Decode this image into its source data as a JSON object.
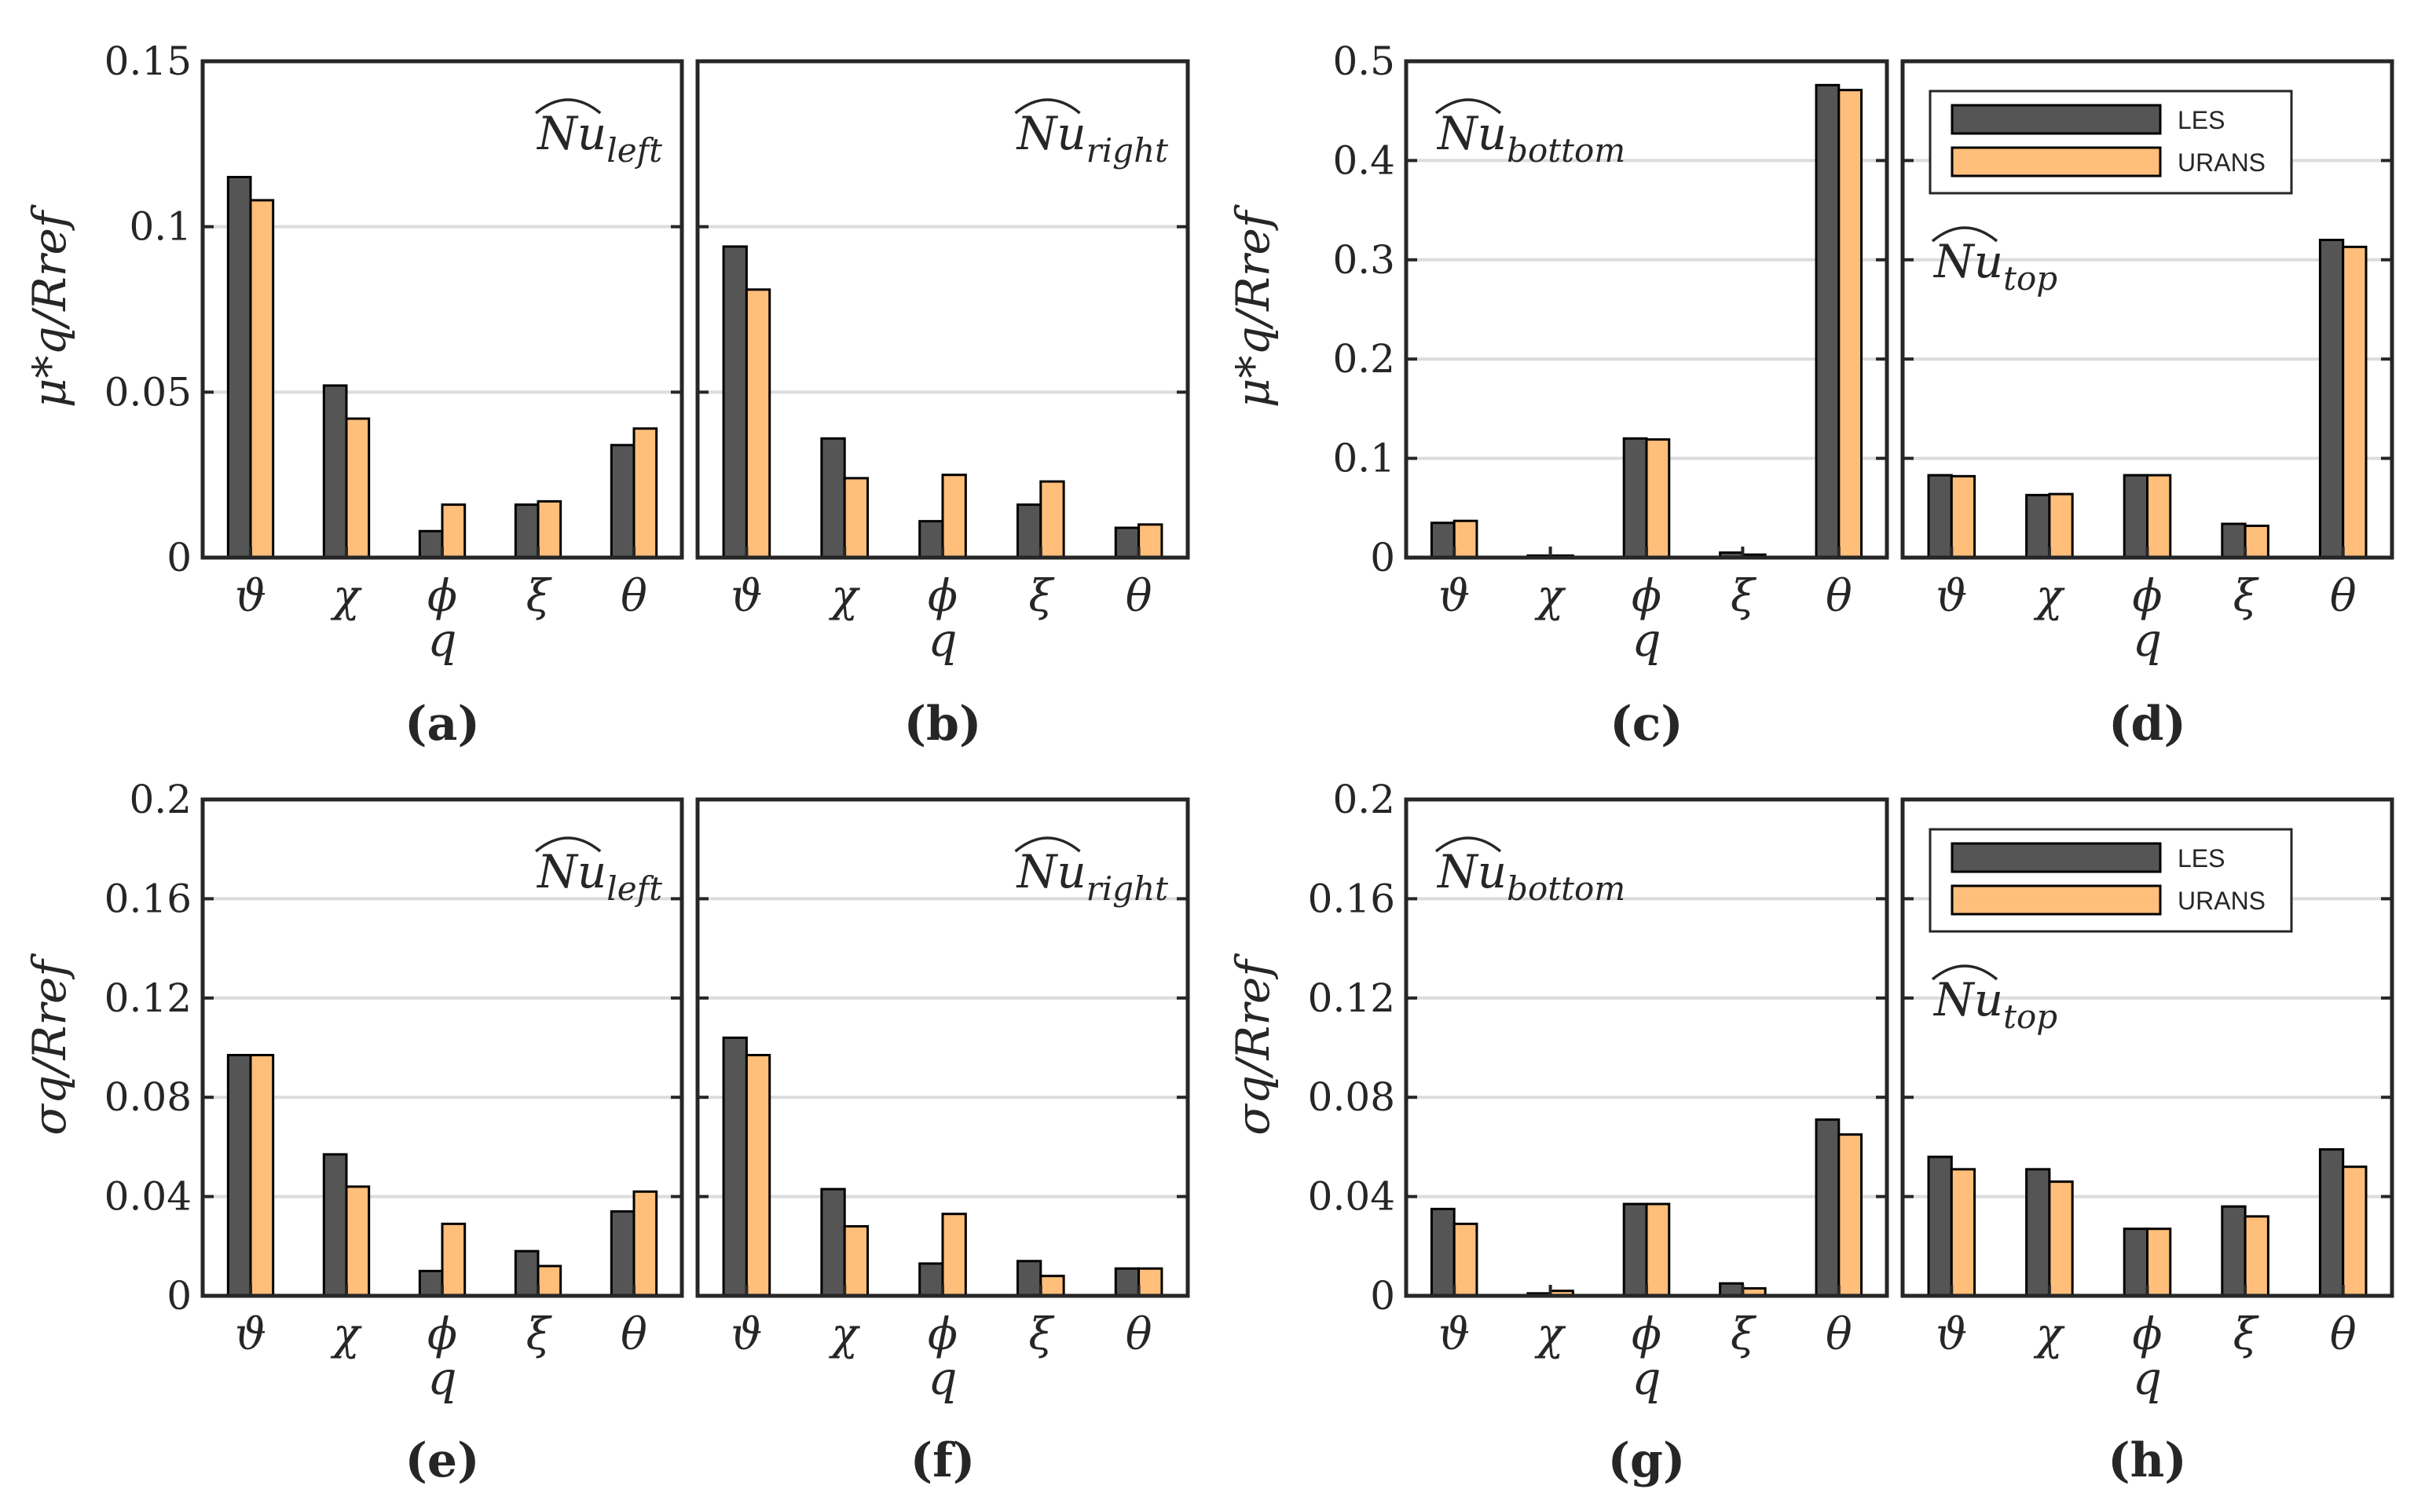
{
  "colors": {
    "les": "#555555",
    "urans": "#ffbe7a",
    "axis": "#262626",
    "grid": "#dcdcdc"
  },
  "legend": {
    "items": [
      "LES",
      "URANS"
    ]
  },
  "chart_data": [
    {
      "type": "bar",
      "panel": "(a)",
      "title_base": "Nu",
      "title_sub": "left",
      "categories": [
        "ϑ",
        "χ",
        "ϕ",
        "ξ",
        "θ"
      ],
      "xlabel": "q",
      "ylabel": "μ*q/Rref",
      "ylim": [
        0,
        0.15
      ],
      "yticks": [
        "0",
        "0.05",
        "0.1",
        "0.15"
      ],
      "ytick_values": [
        0,
        0.05,
        0.1,
        0.15
      ],
      "series": [
        {
          "name": "LES",
          "values": [
            0.115,
            0.052,
            0.008,
            0.016,
            0.034
          ]
        },
        {
          "name": "URANS",
          "values": [
            0.108,
            0.042,
            0.016,
            0.017,
            0.039
          ]
        }
      ]
    },
    {
      "type": "bar",
      "panel": "(b)",
      "title_base": "Nu",
      "title_sub": "right",
      "categories": [
        "ϑ",
        "χ",
        "ϕ",
        "ξ",
        "θ"
      ],
      "xlabel": "q",
      "ylabel": "",
      "ylim": [
        0,
        0.15
      ],
      "yticks": [],
      "ytick_values": [
        0,
        0.05,
        0.1,
        0.15
      ],
      "series": [
        {
          "name": "LES",
          "values": [
            0.094,
            0.036,
            0.011,
            0.016,
            0.009
          ]
        },
        {
          "name": "URANS",
          "values": [
            0.081,
            0.024,
            0.025,
            0.023,
            0.01
          ]
        }
      ]
    },
    {
      "type": "bar",
      "panel": "(c)",
      "title_base": "Nu",
      "title_sub": "bottom",
      "categories": [
        "ϑ",
        "χ",
        "ϕ",
        "ξ",
        "θ"
      ],
      "xlabel": "q",
      "ylabel": "μ*q/Rref",
      "ylim": [
        0,
        0.5
      ],
      "yticks": [
        "0",
        "0.1",
        "0.2",
        "0.3",
        "0.4",
        "0.5"
      ],
      "ytick_values": [
        0,
        0.1,
        0.2,
        0.3,
        0.4,
        0.5
      ],
      "series": [
        {
          "name": "LES",
          "values": [
            0.035,
            0.002,
            0.12,
            0.005,
            0.476
          ]
        },
        {
          "name": "URANS",
          "values": [
            0.037,
            0.002,
            0.119,
            0.003,
            0.471
          ]
        }
      ]
    },
    {
      "type": "bar",
      "panel": "(d)",
      "title_base": "Nu",
      "title_sub": "top",
      "categories": [
        "ϑ",
        "χ",
        "ϕ",
        "ξ",
        "θ"
      ],
      "xlabel": "q",
      "ylabel": "",
      "ylim": [
        0,
        0.5
      ],
      "yticks": [],
      "ytick_values": [
        0,
        0.1,
        0.2,
        0.3,
        0.4,
        0.5
      ],
      "series": [
        {
          "name": "LES",
          "values": [
            0.083,
            0.063,
            0.083,
            0.034,
            0.32
          ]
        },
        {
          "name": "URANS",
          "values": [
            0.082,
            0.064,
            0.083,
            0.032,
            0.313
          ]
        }
      ]
    },
    {
      "type": "bar",
      "panel": "(e)",
      "title_base": "Nu",
      "title_sub": "left",
      "categories": [
        "ϑ",
        "χ",
        "ϕ",
        "ξ",
        "θ"
      ],
      "xlabel": "q",
      "ylabel": "σq/Rref",
      "ylim": [
        0,
        0.2
      ],
      "yticks": [
        "0",
        "0.04",
        "0.08",
        "0.12",
        "0.16",
        "0.2"
      ],
      "ytick_values": [
        0,
        0.04,
        0.08,
        0.12,
        0.16,
        0.2
      ],
      "series": [
        {
          "name": "LES",
          "values": [
            0.097,
            0.057,
            0.01,
            0.018,
            0.034
          ]
        },
        {
          "name": "URANS",
          "values": [
            0.097,
            0.044,
            0.029,
            0.012,
            0.042
          ]
        }
      ]
    },
    {
      "type": "bar",
      "panel": "(f)",
      "title_base": "Nu",
      "title_sub": "right",
      "categories": [
        "ϑ",
        "χ",
        "ϕ",
        "ξ",
        "θ"
      ],
      "xlabel": "q",
      "ylabel": "",
      "ylim": [
        0,
        0.2
      ],
      "yticks": [],
      "ytick_values": [
        0,
        0.04,
        0.08,
        0.12,
        0.16,
        0.2
      ],
      "series": [
        {
          "name": "LES",
          "values": [
            0.104,
            0.043,
            0.013,
            0.014,
            0.011
          ]
        },
        {
          "name": "URANS",
          "values": [
            0.097,
            0.028,
            0.033,
            0.008,
            0.011
          ]
        }
      ]
    },
    {
      "type": "bar",
      "panel": "(g)",
      "title_base": "Nu",
      "title_sub": "bottom",
      "categories": [
        "ϑ",
        "χ",
        "ϕ",
        "ξ",
        "θ"
      ],
      "xlabel": "q",
      "ylabel": "σq/Rref",
      "ylim": [
        0,
        0.2
      ],
      "yticks": [
        "0",
        "0.04",
        "0.08",
        "0.12",
        "0.16",
        "0.2"
      ],
      "ytick_values": [
        0,
        0.04,
        0.08,
        0.12,
        0.16,
        0.2
      ],
      "series": [
        {
          "name": "LES",
          "values": [
            0.035,
            0.001,
            0.037,
            0.005,
            0.071
          ]
        },
        {
          "name": "URANS",
          "values": [
            0.029,
            0.002,
            0.037,
            0.003,
            0.065
          ]
        }
      ]
    },
    {
      "type": "bar",
      "panel": "(h)",
      "title_base": "Nu",
      "title_sub": "top",
      "categories": [
        "ϑ",
        "χ",
        "ϕ",
        "ξ",
        "θ"
      ],
      "xlabel": "q",
      "ylabel": "",
      "ylim": [
        0,
        0.2
      ],
      "yticks": [],
      "ytick_values": [
        0,
        0.04,
        0.08,
        0.12,
        0.16,
        0.2
      ],
      "series": [
        {
          "name": "LES",
          "values": [
            0.056,
            0.051,
            0.027,
            0.036,
            0.059
          ]
        },
        {
          "name": "URANS",
          "values": [
            0.051,
            0.046,
            0.027,
            0.032,
            0.052
          ]
        }
      ]
    }
  ]
}
